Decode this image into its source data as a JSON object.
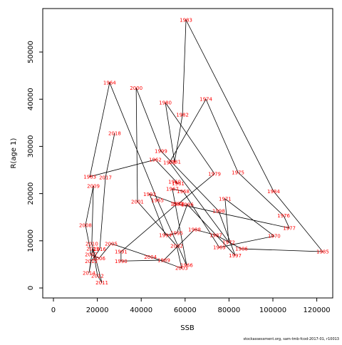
{
  "chart_data": {
    "type": "scatter",
    "x_label": "SSB",
    "y_label": "R(age 1)",
    "footnote": "stockassessment.org, sam-tmb-fcod-2017-01, r10013",
    "line_color": "#000000",
    "label_color": "#ff0000",
    "labels": [
      "1960",
      "1961",
      "1962",
      "1963",
      "1964",
      "1965",
      "1966",
      "1967",
      "1968",
      "1969",
      "1970",
      "1971",
      "1972",
      "1973",
      "1974",
      "1975",
      "1976",
      "1977",
      "1978",
      "1979",
      "1980",
      "1981",
      "1982",
      "1983",
      "1984",
      "1985",
      "1986",
      "1987",
      "1988",
      "1989",
      "1990",
      "1991",
      "1992",
      "1993",
      "1994",
      "1995",
      "1996",
      "1997",
      "1998",
      "1999",
      "2000",
      "2001",
      "2002",
      "2003",
      "2004",
      "2005",
      "2006",
      "2007",
      "2008",
      "2009",
      "2010",
      "2011",
      "2012",
      "2013",
      "2014",
      "2015",
      "2016",
      "2017",
      "2018"
    ],
    "x": [
      55200,
      56800,
      46400,
      16600,
      25600,
      47400,
      60700,
      54200,
      59100,
      75600,
      100600,
      78200,
      79900,
      52900,
      69500,
      84100,
      104900,
      107500,
      56800,
      73400,
      51000,
      55200,
      58800,
      60400,
      100300,
      122700,
      85700,
      74000,
      64300,
      50300,
      30800,
      30800,
      56200,
      43800,
      51000,
      56200,
      61000,
      82800,
      75300,
      49000,
      37700,
      38300,
      56200,
      58400,
      44200,
      26300,
      20800,
      17200,
      14600,
      18200,
      17500,
      22100,
      20100,
      17900,
      16200,
      17200,
      21100,
      23700,
      27900
    ],
    "y": [
      22500,
      22100,
      27200,
      23600,
      43500,
      18600,
      4800,
      21000,
      20500,
      8600,
      11000,
      18900,
      9700,
      26600,
      40000,
      24500,
      15300,
      12700,
      17800,
      24200,
      39300,
      26700,
      36700,
      56800,
      20500,
      7700,
      8300,
      11200,
      12400,
      5900,
      5700,
      7700,
      17800,
      19900,
      11200,
      11600,
      17700,
      6900,
      16300,
      29000,
      42400,
      18300,
      8900,
      4200,
      6600,
      9400,
      6300,
      7100,
      13300,
      21600,
      9400,
      1100,
      2600,
      8300,
      3200,
      5700,
      8200,
      23400,
      32800
    ],
    "xlim": [
      -4870,
      127270
    ],
    "ylim": [
      -2115,
      59215
    ],
    "xticks": [
      0,
      20000,
      40000,
      60000,
      80000,
      100000,
      120000
    ],
    "yticks": [
      0,
      10000,
      20000,
      30000,
      40000,
      50000
    ]
  }
}
